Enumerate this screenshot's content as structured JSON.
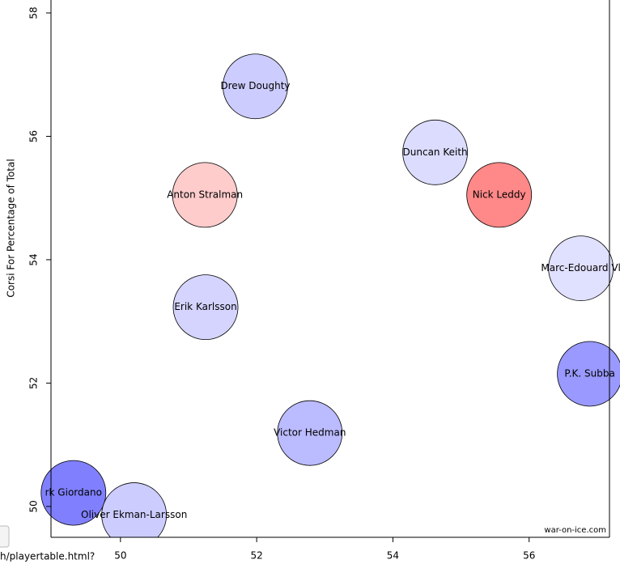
{
  "chart_data": {
    "type": "bubble",
    "y_label": "Corsi For Percentage of Total",
    "watermark": "war-on-ice.com",
    "status_url": "h/playertable.html?",
    "labels": [
      "Drew Doughty",
      "Duncan Keith",
      "Nick Leddy",
      "Anton Stralman",
      "Marc-Edouard Vl",
      "Erik Karlsson",
      "P.K. Subba",
      "Victor Hedman",
      "rk Giordano",
      "Oliver Ekman-Larsson"
    ],
    "x": [
      51.98,
      54.62,
      55.56,
      51.24,
      56.76,
      51.25,
      56.89,
      52.78,
      49.31,
      50.2
    ],
    "y": [
      56.81,
      55.74,
      55.05,
      55.05,
      53.86,
      53.23,
      52.15,
      51.19,
      50.22,
      49.86
    ],
    "colors": [
      "#ccccff",
      "#dcdcff",
      "#ff8888",
      "#ffcccc",
      "#e0e0ff",
      "#d4d4ff",
      "#9999ff",
      "#bbbbff",
      "#8080ff",
      "#ccccff"
    ],
    "xlim": [
      48.98,
      57.18
    ],
    "ylim": [
      49.5,
      58.21
    ],
    "xticks": [
      50,
      52,
      54,
      56
    ],
    "yticks": [
      50,
      52,
      54,
      56,
      58
    ]
  }
}
